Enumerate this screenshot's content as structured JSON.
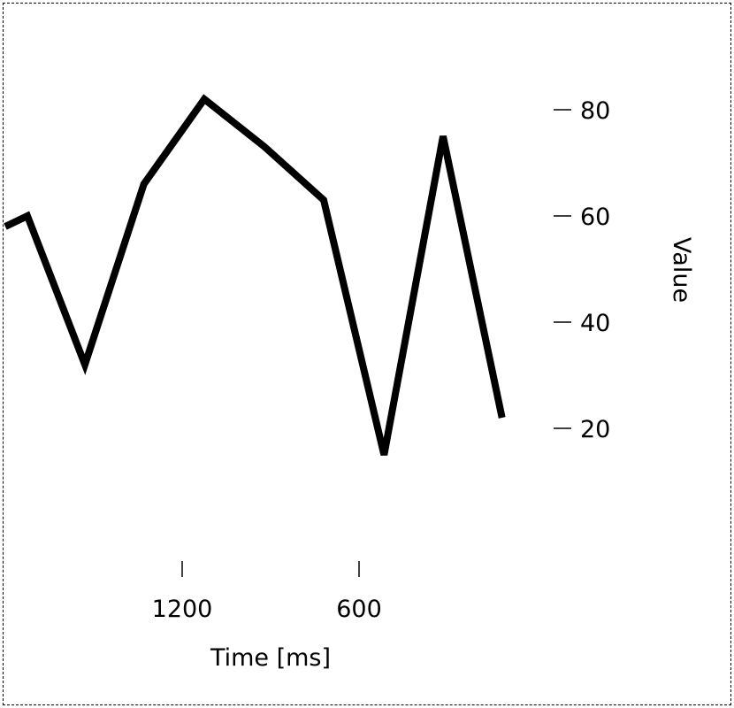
{
  "chart_data": {
    "type": "line",
    "xlabel": "Time [ms]",
    "ylabel": "Value",
    "x_axis": {
      "direction": "reversed",
      "range": [
        1800,
        300
      ],
      "ticks": [
        1200,
        600
      ],
      "tick_labels": [
        "1200",
        "600"
      ]
    },
    "y_axis": {
      "position": "right",
      "range": [
        0,
        100
      ],
      "ticks": [
        80,
        60,
        40,
        20
      ],
      "tick_labels": [
        "80",
        "60",
        "40",
        "20"
      ]
    },
    "series": [
      {
        "color": "#000000",
        "x": [
          1800,
          1725,
          1530,
          1330,
          1125,
          920,
          720,
          515,
          315
        ],
        "y": [
          58,
          60,
          32,
          66,
          82,
          73,
          63,
          15,
          75
        ]
      }
    ],
    "extra_point": {
      "x": 115,
      "y": 22
    },
    "grid": false,
    "frame": "dashed"
  }
}
